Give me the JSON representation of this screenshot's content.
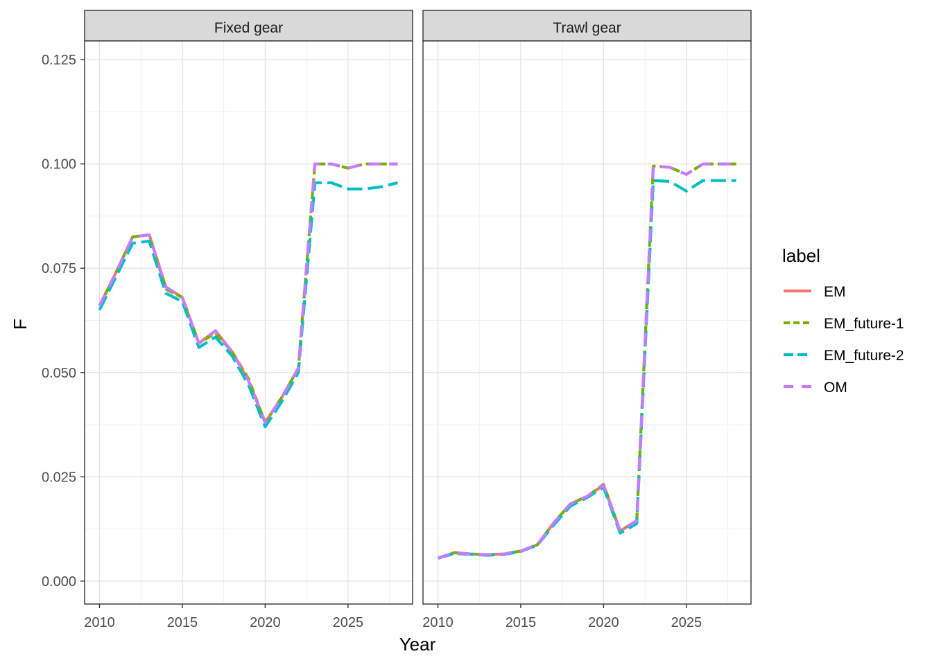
{
  "chart_data": {
    "type": "line",
    "xlabel": "Year",
    "ylabel": "F",
    "xlim": [
      2009.1,
      2028.9
    ],
    "ylim": [
      -0.0055,
      0.1295
    ],
    "x_ticks": [
      2010,
      2015,
      2020,
      2025
    ],
    "y_ticks": [
      0.0,
      0.025,
      0.05,
      0.075,
      0.1,
      0.125
    ],
    "y_tick_labels": [
      "0.000",
      "0.025",
      "0.050",
      "0.075",
      "0.100",
      "0.125"
    ],
    "grid": true,
    "legend": {
      "title": "label",
      "position": "right",
      "entries": [
        "EM",
        "EM_future-1",
        "EM_future-2",
        "OM"
      ]
    },
    "series_styles": [
      {
        "name": "EM",
        "color": "#F8766D",
        "dash": ""
      },
      {
        "name": "EM_future-1",
        "color": "#7CAE00",
        "dash": "12 6"
      },
      {
        "name": "EM_future-2",
        "color": "#00BFC4",
        "dash": "22 8"
      },
      {
        "name": "OM",
        "color": "#C77CFF",
        "dash": "18 12"
      }
    ],
    "panels": [
      {
        "title": "Fixed gear",
        "series": [
          {
            "name": "EM",
            "x": [
              2010,
              2011,
              2012,
              2013,
              2014,
              2015,
              2016,
              2017,
              2018,
              2019,
              2020,
              2021,
              2022
            ],
            "values": [
              0.066,
              0.074,
              0.0825,
              0.083,
              0.0705,
              0.068,
              0.057,
              0.06,
              0.055,
              0.048,
              0.038,
              0.044,
              0.051
            ]
          },
          {
            "name": "EM_future-1",
            "x": [
              2010,
              2011,
              2012,
              2013,
              2014,
              2015,
              2016,
              2017,
              2018,
              2019,
              2020,
              2021,
              2022,
              2023,
              2024,
              2025,
              2026,
              2027,
              2028
            ],
            "values": [
              0.066,
              0.074,
              0.0825,
              0.083,
              0.07,
              0.068,
              0.057,
              0.0595,
              0.055,
              0.0485,
              0.038,
              0.044,
              0.051,
              0.1,
              0.1,
              0.099,
              0.1,
              0.1,
              0.1
            ]
          },
          {
            "name": "EM_future-2",
            "x": [
              2010,
              2011,
              2012,
              2013,
              2014,
              2015,
              2016,
              2017,
              2018,
              2019,
              2020,
              2021,
              2022,
              2023,
              2024,
              2025,
              2026,
              2027,
              2028
            ],
            "values": [
              0.065,
              0.073,
              0.081,
              0.0815,
              0.069,
              0.067,
              0.056,
              0.0585,
              0.054,
              0.047,
              0.037,
              0.043,
              0.05,
              0.0955,
              0.0955,
              0.094,
              0.094,
              0.0945,
              0.0955
            ]
          },
          {
            "name": "OM",
            "x": [
              2010,
              2011,
              2012,
              2013,
              2014,
              2015,
              2016,
              2017,
              2018,
              2019,
              2020,
              2021,
              2022,
              2023,
              2024,
              2025,
              2026,
              2027,
              2028
            ],
            "values": [
              0.066,
              0.074,
              0.0825,
              0.083,
              0.0705,
              0.068,
              0.057,
              0.06,
              0.055,
              0.048,
              0.038,
              0.044,
              0.051,
              0.1,
              0.1,
              0.099,
              0.1,
              0.1,
              0.1
            ]
          }
        ]
      },
      {
        "title": "Trawl gear",
        "series": [
          {
            "name": "EM",
            "x": [
              2010,
              2011,
              2012,
              2013,
              2014,
              2015,
              2016,
              2017,
              2018,
              2019,
              2020,
              2021,
              2022
            ],
            "values": [
              0.0055,
              0.0068,
              0.0065,
              0.0063,
              0.0065,
              0.0072,
              0.0087,
              0.014,
              0.0185,
              0.0203,
              0.023,
              0.012,
              0.0145
            ]
          },
          {
            "name": "EM_future-1",
            "x": [
              2010,
              2011,
              2012,
              2013,
              2014,
              2015,
              2016,
              2017,
              2018,
              2019,
              2020,
              2021,
              2022,
              2023,
              2024,
              2025,
              2026,
              2027,
              2028
            ],
            "values": [
              0.0055,
              0.0068,
              0.0065,
              0.0063,
              0.0065,
              0.0072,
              0.0087,
              0.014,
              0.0185,
              0.0203,
              0.0232,
              0.012,
              0.0145,
              0.0995,
              0.0992,
              0.0975,
              0.1,
              0.1,
              0.1
            ]
          },
          {
            "name": "EM_future-2",
            "x": [
              2010,
              2011,
              2012,
              2013,
              2014,
              2015,
              2016,
              2017,
              2018,
              2019,
              2020,
              2021,
              2022,
              2023,
              2024,
              2025,
              2026,
              2027,
              2028
            ],
            "values": [
              0.0055,
              0.0066,
              0.0064,
              0.0062,
              0.0064,
              0.0071,
              0.0086,
              0.0135,
              0.018,
              0.02,
              0.0225,
              0.0115,
              0.0138,
              0.096,
              0.0958,
              0.0935,
              0.096,
              0.096,
              0.096
            ]
          },
          {
            "name": "OM",
            "x": [
              2010,
              2011,
              2012,
              2013,
              2014,
              2015,
              2016,
              2017,
              2018,
              2019,
              2020,
              2021,
              2022,
              2023,
              2024,
              2025,
              2026,
              2027,
              2028
            ],
            "values": [
              0.0055,
              0.0068,
              0.0065,
              0.0063,
              0.0065,
              0.0072,
              0.0087,
              0.014,
              0.0185,
              0.0203,
              0.023,
              0.012,
              0.0145,
              0.0995,
              0.0992,
              0.0975,
              0.1,
              0.1,
              0.1
            ]
          }
        ]
      }
    ]
  }
}
